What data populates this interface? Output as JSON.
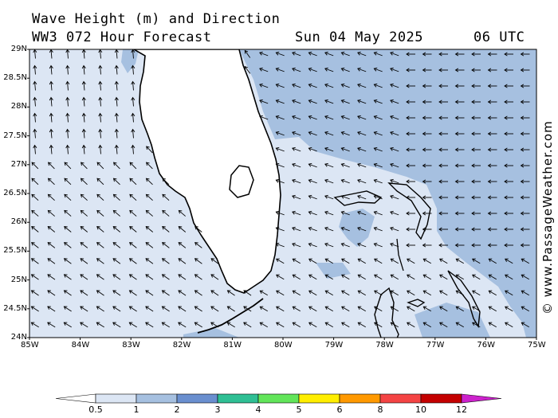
{
  "title": {
    "line1": "Wave Height (m) and Direction",
    "line2": "WW3 072 Hour Forecast",
    "date": "Sun 04 May 2025",
    "time": "06 UTC"
  },
  "credit": "© www.PassageWeather.com",
  "map": {
    "lat_labels": [
      "29N",
      "28.5N",
      "28N",
      "27.5N",
      "27N",
      "26.5N",
      "26N",
      "25.5N",
      "25N",
      "24.5N",
      "24N"
    ],
    "lon_labels": [
      "85W",
      "84W",
      "83W",
      "82W",
      "81W",
      "80W",
      "79W",
      "78W",
      "77W",
      "76W",
      "75W"
    ]
  },
  "legend": {
    "labels": [
      "0.5",
      "1",
      "2",
      "3",
      "4",
      "5",
      "6",
      "8",
      "10",
      "12"
    ],
    "colors": [
      "#ffffff",
      "#dce6f4",
      "#a6c0e0",
      "#6a8fcf",
      "#2fbf94",
      "#62e55a",
      "#ffee00",
      "#ff9900",
      "#f44444",
      "#c40000",
      "#cc22cc"
    ]
  },
  "colors": {
    "land": "#ffffff",
    "sea_low": "#dce6f4",
    "sea_mid": "#a6c0e0",
    "coast": "#000000"
  }
}
